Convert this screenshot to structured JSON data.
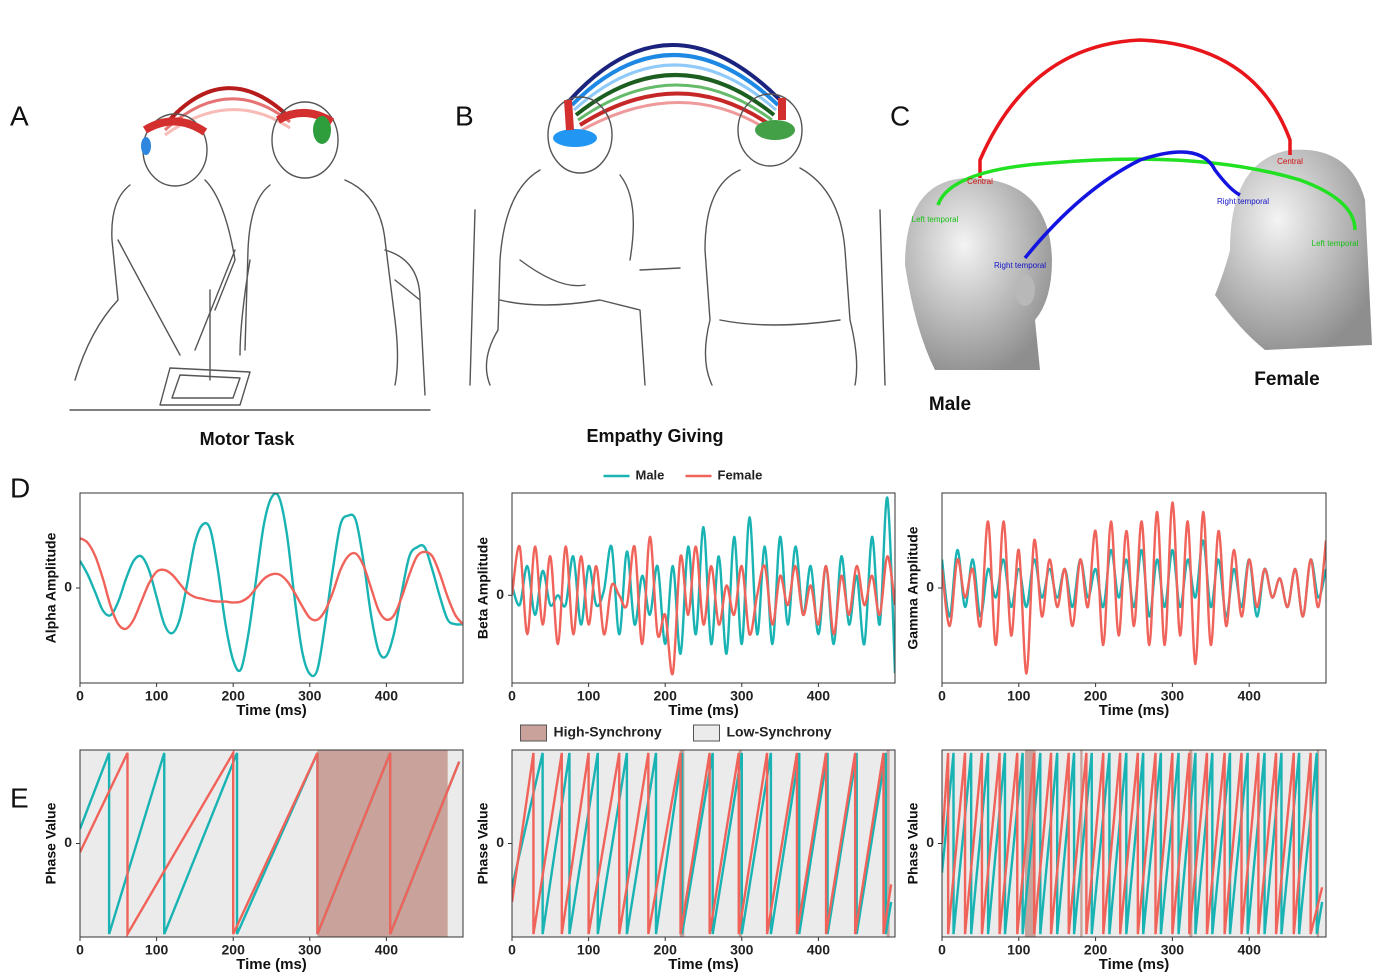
{
  "figure": {
    "panel_labels": [
      "A",
      "B",
      "C",
      "D",
      "E"
    ],
    "captions": [
      "Motor Task",
      "Empathy Giving"
    ],
    "head_labels": [
      "Central",
      "Central",
      "Left temporal",
      "Right temporal",
      "Right temporal",
      "Left temporal"
    ],
    "heads": [
      "Male",
      "Female"
    ]
  },
  "chart_data": [
    {
      "type": "line",
      "ylabel": "Alpha Amplitude",
      "xlabel": "Time (ms)",
      "curve": "smooth",
      "legend": false,
      "xlim": [
        0,
        500
      ],
      "xticks": [
        0,
        100,
        200,
        300,
        400
      ],
      "ylim": [
        -1.05,
        1.05
      ],
      "yticks": [
        0
      ],
      "x": [
        0,
        10,
        20,
        30,
        40,
        50,
        60,
        70,
        80,
        90,
        100,
        110,
        120,
        130,
        140,
        150,
        160,
        170,
        180,
        190,
        200,
        210,
        220,
        230,
        240,
        250,
        260,
        270,
        280,
        290,
        300,
        310,
        320,
        330,
        340,
        350,
        360,
        370,
        380,
        390,
        400,
        410,
        420,
        430,
        440,
        450,
        460,
        470,
        480,
        490,
        500
      ],
      "series": [
        {
          "name": "Male",
          "color": "#1ab3b3",
          "values": [
            0.3,
            0.15,
            -0.05,
            -0.25,
            -0.3,
            -0.15,
            0.1,
            0.3,
            0.35,
            0.2,
            -0.1,
            -0.4,
            -0.5,
            -0.35,
            0.05,
            0.5,
            0.7,
            0.65,
            0.2,
            -0.4,
            -0.8,
            -0.9,
            -0.5,
            0.1,
            0.7,
            1.0,
            1.0,
            0.6,
            -0.1,
            -0.7,
            -0.95,
            -0.9,
            -0.4,
            0.2,
            0.7,
            0.8,
            0.75,
            0.3,
            -0.3,
            -0.7,
            -0.75,
            -0.5,
            -0.05,
            0.35,
            0.45,
            0.45,
            0.2,
            -0.1,
            -0.35,
            -0.4,
            -0.4
          ]
        },
        {
          "name": "Female",
          "color": "#f0635a",
          "values": [
            0.55,
            0.5,
            0.35,
            0.1,
            -0.2,
            -0.4,
            -0.45,
            -0.35,
            -0.15,
            0.05,
            0.18,
            0.2,
            0.15,
            0.05,
            -0.05,
            -0.1,
            -0.12,
            -0.14,
            -0.15,
            -0.15,
            -0.16,
            -0.15,
            -0.1,
            0.0,
            0.1,
            0.15,
            0.15,
            0.08,
            -0.05,
            -0.2,
            -0.33,
            -0.35,
            -0.25,
            -0.05,
            0.2,
            0.35,
            0.38,
            0.25,
            0.0,
            -0.25,
            -0.35,
            -0.3,
            -0.1,
            0.15,
            0.35,
            0.4,
            0.35,
            0.15,
            -0.1,
            -0.3,
            -0.4
          ]
        }
      ]
    },
    {
      "type": "line",
      "ylabel": "Beta Amplitude",
      "xlabel": "Time (ms)",
      "curve": "smooth",
      "legend": true,
      "xlim": [
        0,
        500
      ],
      "xticks": [
        0,
        100,
        200,
        300,
        400
      ],
      "ylim": [
        -0.9,
        1.05
      ],
      "yticks": [
        0
      ],
      "x": [
        0,
        10,
        20,
        30,
        40,
        50,
        60,
        70,
        80,
        90,
        100,
        110,
        120,
        130,
        140,
        150,
        160,
        170,
        180,
        190,
        200,
        210,
        220,
        230,
        240,
        250,
        260,
        270,
        280,
        290,
        300,
        310,
        320,
        330,
        340,
        350,
        360,
        370,
        380,
        390,
        400,
        410,
        420,
        430,
        440,
        450,
        460,
        470,
        480,
        490,
        500
      ],
      "series": [
        {
          "name": "Male",
          "color": "#1ab3b3",
          "values": [
            0.1,
            -0.1,
            0.3,
            -0.2,
            0.25,
            -0.1,
            0.0,
            -0.1,
            0.4,
            -0.3,
            0.3,
            -0.1,
            0.05,
            0.5,
            -0.4,
            0.45,
            -0.3,
            0.2,
            -0.2,
            0.3,
            -0.5,
            0.3,
            -0.6,
            0.5,
            -0.4,
            0.7,
            -0.5,
            0.4,
            -0.6,
            0.6,
            -0.5,
            0.8,
            -0.4,
            0.5,
            -0.5,
            0.6,
            -0.3,
            0.5,
            -0.2,
            0.3,
            -0.4,
            0.3,
            -0.5,
            0.4,
            -0.3,
            0.2,
            -0.5,
            0.6,
            -0.3,
            1.0,
            -0.8
          ]
        },
        {
          "name": "Female",
          "color": "#f0635a",
          "values": [
            0.0,
            0.5,
            -0.4,
            0.5,
            -0.3,
            0.4,
            -0.5,
            0.5,
            -0.4,
            0.4,
            -0.3,
            0.3,
            -0.4,
            0.1,
            0.0,
            -0.1,
            0.5,
            -0.5,
            0.6,
            -0.4,
            -0.2,
            -0.8,
            0.4,
            -0.2,
            0.5,
            -0.3,
            0.3,
            -0.3,
            0.1,
            -0.2,
            0.3,
            -0.4,
            0.0,
            0.3,
            -0.3,
            0.2,
            -0.1,
            0.3,
            -0.2,
            0.1,
            -0.3,
            0.3,
            -0.4,
            0.2,
            -0.2,
            0.3,
            -0.1,
            0.2,
            -0.2,
            0.4,
            -0.1
          ]
        }
      ]
    },
    {
      "type": "line",
      "ylabel": "Gamma Amplitude",
      "xlabel": "Time (ms)",
      "curve": "smooth",
      "legend": false,
      "xlim": [
        0,
        500
      ],
      "xticks": [
        0,
        100,
        200,
        300,
        400
      ],
      "ylim": [
        -1.0,
        1.0
      ],
      "yticks": [
        0
      ],
      "x": [
        0,
        10,
        20,
        30,
        40,
        50,
        60,
        70,
        80,
        90,
        100,
        110,
        120,
        130,
        140,
        150,
        160,
        170,
        180,
        190,
        200,
        210,
        220,
        230,
        240,
        250,
        260,
        270,
        280,
        290,
        300,
        310,
        320,
        330,
        340,
        350,
        360,
        370,
        380,
        390,
        400,
        410,
        420,
        430,
        440,
        450,
        460,
        470,
        480,
        490,
        500
      ],
      "series": [
        {
          "name": "Male",
          "color": "#1ab3b3",
          "values": [
            0.3,
            -0.3,
            0.4,
            -0.2,
            0.3,
            -0.3,
            0.2,
            -0.1,
            0.3,
            -0.2,
            0.2,
            -0.2,
            0.3,
            -0.1,
            0.2,
            -0.1,
            0.2,
            -0.2,
            0.3,
            -0.1,
            0.2,
            -0.2,
            0.4,
            -0.1,
            0.3,
            -0.2,
            0.4,
            -0.3,
            0.3,
            -0.2,
            0.4,
            -0.2,
            0.3,
            -0.1,
            0.5,
            -0.2,
            0.3,
            -0.3,
            0.2,
            -0.2,
            0.3,
            -0.3,
            0.2,
            -0.1,
            0.1,
            -0.2,
            0.2,
            -0.3,
            0.3,
            -0.1,
            0.2
          ]
        },
        {
          "name": "Female",
          "color": "#f0635a",
          "values": [
            0.2,
            -0.4,
            0.3,
            -0.1,
            0.2,
            -0.4,
            0.7,
            -0.6,
            0.7,
            -0.5,
            0.4,
            -0.9,
            0.5,
            -0.3,
            0.3,
            -0.2,
            0.2,
            -0.4,
            0.3,
            -0.2,
            0.6,
            -0.6,
            0.7,
            -0.5,
            0.6,
            -0.4,
            0.7,
            -0.6,
            0.8,
            -0.6,
            0.9,
            -0.5,
            0.7,
            -0.8,
            0.8,
            -0.6,
            0.6,
            -0.4,
            0.4,
            -0.3,
            0.3,
            -0.2,
            0.2,
            -0.1,
            0.1,
            -0.2,
            0.2,
            -0.3,
            0.3,
            -0.2,
            0.5
          ]
        }
      ]
    },
    {
      "type": "line",
      "ylabel": "Phase Value",
      "xlabel": "Time (ms)",
      "curve": "linear",
      "legend": false,
      "xlim": [
        0,
        500
      ],
      "xticks": [
        0,
        100,
        200,
        300,
        400
      ],
      "ylim": [
        -3.2,
        3.2
      ],
      "yticks": [
        0
      ],
      "background": {
        "name": "Low-Synchrony",
        "color": "#ebebeb"
      },
      "regions": {
        "name": "High-Synchrony",
        "color": "#c9a39b",
        "spans": [
          [
            310,
            480
          ]
        ]
      },
      "series": [
        {
          "name": "Male",
          "color": "#1ab3b3",
          "x": [
            0,
            38,
            38,
            110,
            110,
            205,
            205,
            310,
            310,
            405,
            405,
            495
          ],
          "values": [
            0.5,
            3.1,
            -3.1,
            3.1,
            -3.1,
            3.1,
            -3.1,
            3.1,
            -3.1,
            3.1,
            -3.1,
            2.8
          ]
        },
        {
          "name": "Female",
          "color": "#f0635a",
          "x": [
            0,
            62,
            62,
            200,
            200,
            310,
            310,
            405,
            405,
            495
          ],
          "values": [
            -0.3,
            3.1,
            -3.1,
            3.1,
            -3.1,
            3.1,
            -3.1,
            3.1,
            -3.1,
            2.8
          ]
        }
      ]
    },
    {
      "type": "line",
      "ylabel": "Phase Value",
      "xlabel": "Time (ms)",
      "curve": "linear",
      "legend": true,
      "xlim": [
        0,
        500
      ],
      "xticks": [
        0,
        100,
        200,
        300,
        400
      ],
      "ylim": [
        -3.2,
        3.2
      ],
      "yticks": [
        0
      ],
      "background": {
        "name": "Low-Synchrony",
        "color": "#ebebeb"
      },
      "regions": {
        "name": "High-Synchrony",
        "color": "#c9a39b",
        "spans": [
          [
            219,
            225
          ],
          [
            296,
            300
          ],
          [
            489,
            493
          ]
        ]
      },
      "series": [
        {
          "name": "Male",
          "color": "#1ab3b3",
          "x": [
            0,
            40,
            40,
            75,
            75,
            112,
            112,
            150,
            150,
            188,
            188,
            222,
            222,
            262,
            262,
            300,
            300,
            338,
            338,
            375,
            375,
            412,
            412,
            450,
            450,
            488,
            488,
            495
          ],
          "values": [
            -1.5,
            3.1,
            -3.1,
            3.1,
            -3.1,
            3.1,
            -3.1,
            3.1,
            -3.1,
            3.1,
            -3.1,
            3.1,
            -3.1,
            3.1,
            -3.1,
            3.1,
            -3.1,
            3.1,
            -3.1,
            3.1,
            -3.1,
            3.1,
            -3.1,
            3.1,
            -3.1,
            3.1,
            -3.1,
            -2.0
          ]
        },
        {
          "name": "Female",
          "color": "#f0635a",
          "x": [
            0,
            28,
            28,
            65,
            65,
            100,
            100,
            140,
            140,
            178,
            178,
            220,
            220,
            258,
            258,
            296,
            296,
            333,
            333,
            372,
            372,
            410,
            410,
            448,
            448,
            485,
            485,
            495
          ],
          "values": [
            -2.0,
            3.1,
            -3.1,
            3.1,
            -3.1,
            3.1,
            -3.1,
            3.1,
            -3.1,
            3.1,
            -3.1,
            3.1,
            -3.1,
            3.1,
            -3.1,
            3.1,
            -3.1,
            3.1,
            -3.1,
            3.1,
            -3.1,
            3.1,
            -3.1,
            3.1,
            -3.1,
            3.1,
            -3.1,
            -1.4
          ]
        }
      ]
    },
    {
      "type": "line",
      "ylabel": "Phase Value",
      "xlabel": "Time (ms)",
      "curve": "linear",
      "legend": false,
      "xlim": [
        0,
        500
      ],
      "xticks": [
        0,
        100,
        200,
        300,
        400
      ],
      "ylim": [
        -3.2,
        3.2
      ],
      "yticks": [
        0
      ],
      "background": {
        "name": "Low-Synchrony",
        "color": "#ebebeb"
      },
      "regions": {
        "name": "High-Synchrony",
        "color": "#c9a39b",
        "spans": [
          [
            108,
            122
          ],
          [
            180,
            183
          ],
          [
            322,
            326
          ],
          [
            488,
            491
          ]
        ]
      },
      "series": [
        {
          "name": "Male",
          "color": "#1ab3b3",
          "x": [
            0,
            15,
            15,
            38,
            38,
            60,
            60,
            82,
            82,
            105,
            105,
            128,
            128,
            150,
            150,
            172,
            172,
            195,
            195,
            218,
            218,
            240,
            240,
            262,
            262,
            285,
            285,
            308,
            308,
            330,
            330,
            352,
            352,
            375,
            375,
            398,
            398,
            420,
            420,
            442,
            442,
            465,
            465,
            488,
            488,
            495
          ],
          "values": [
            -1.0,
            3.1,
            -3.1,
            3.1,
            -3.1,
            3.1,
            -3.1,
            3.1,
            -3.1,
            3.1,
            -3.1,
            3.1,
            -3.1,
            3.1,
            -3.1,
            3.1,
            -3.1,
            3.1,
            -3.1,
            3.1,
            -3.1,
            3.1,
            -3.1,
            3.1,
            -3.1,
            3.1,
            -3.1,
            3.1,
            -3.1,
            3.1,
            -3.1,
            3.1,
            -3.1,
            3.1,
            -3.1,
            3.1,
            -3.1,
            3.1,
            -3.1,
            3.1,
            -3.1,
            3.1,
            -3.1,
            3.1,
            -3.1,
            -2.0
          ]
        },
        {
          "name": "Female",
          "color": "#f0635a",
          "x": [
            0,
            8,
            8,
            30,
            30,
            52,
            52,
            75,
            75,
            98,
            98,
            120,
            120,
            142,
            142,
            165,
            165,
            188,
            188,
            210,
            210,
            232,
            232,
            255,
            255,
            278,
            278,
            300,
            300,
            322,
            322,
            345,
            345,
            368,
            368,
            390,
            390,
            412,
            412,
            435,
            435,
            458,
            458,
            480,
            480,
            495
          ],
          "values": [
            0.0,
            3.1,
            -3.1,
            3.1,
            -3.1,
            3.1,
            -3.1,
            3.1,
            -3.1,
            3.1,
            -3.1,
            3.1,
            -3.1,
            3.1,
            -3.1,
            3.1,
            -3.1,
            3.1,
            -3.1,
            3.1,
            -3.1,
            3.1,
            -3.1,
            3.1,
            -3.1,
            3.1,
            -3.1,
            3.1,
            -3.1,
            3.1,
            -3.1,
            3.1,
            -3.1,
            3.1,
            -3.1,
            3.1,
            -3.1,
            3.1,
            -3.1,
            3.1,
            -3.1,
            3.1,
            -3.1,
            3.1,
            -3.1,
            -1.5
          ]
        }
      ]
    }
  ]
}
